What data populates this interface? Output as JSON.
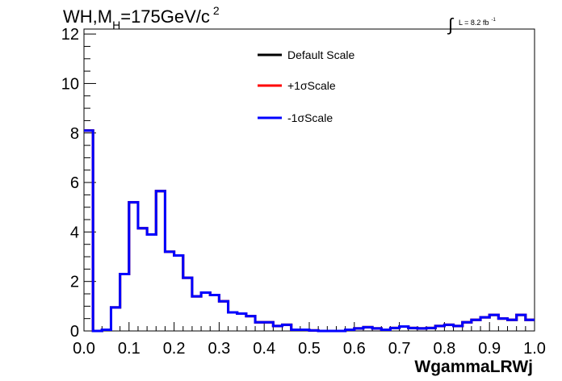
{
  "chart_data": {
    "type": "line",
    "title_main": "WH,M",
    "title_sub": "H",
    "title_rest": "=175GeV/c",
    "title_sup": "2",
    "lumi_text": "L = 8.2 fb",
    "lumi_sup": "-1",
    "xlabel": "WgammaLRWj",
    "xlim": [
      0,
      1.0
    ],
    "ylim": [
      0,
      12.2
    ],
    "x_ticks": [
      "0.0",
      "0.1",
      "0.2",
      "0.3",
      "0.4",
      "0.5",
      "0.6",
      "0.7",
      "0.8",
      "0.9",
      "1.0"
    ],
    "y_ticks": [
      "0",
      "2",
      "4",
      "6",
      "8",
      "10",
      "12"
    ],
    "bin_edges": [
      0,
      0.02,
      0.04,
      0.06,
      0.08,
      0.1,
      0.12,
      0.14,
      0.16,
      0.18,
      0.2,
      0.22,
      0.24,
      0.26,
      0.28,
      0.3,
      0.32,
      0.34,
      0.36,
      0.38,
      0.4,
      0.42,
      0.44,
      0.46,
      0.48,
      0.5,
      0.52,
      0.54,
      0.56,
      0.58,
      0.6,
      0.62,
      0.64,
      0.66,
      0.68,
      0.7,
      0.72,
      0.74,
      0.76,
      0.78,
      0.8,
      0.82,
      0.84,
      0.86,
      0.88,
      0.9,
      0.92,
      0.94,
      0.96,
      0.98,
      1.0
    ],
    "series": [
      {
        "name": "Default Scale",
        "color": "#000000",
        "values": [
          8.1,
          0.0,
          0.05,
          0.95,
          2.3,
          5.2,
          4.15,
          3.9,
          5.65,
          3.2,
          3.05,
          2.15,
          1.4,
          1.55,
          1.45,
          1.2,
          0.75,
          0.7,
          0.6,
          0.35,
          0.35,
          0.2,
          0.25,
          0.05,
          0.05,
          0.02,
          0.0,
          0.0,
          0.0,
          0.05,
          0.1,
          0.15,
          0.1,
          0.05,
          0.12,
          0.18,
          0.12,
          0.1,
          0.12,
          0.2,
          0.25,
          0.2,
          0.35,
          0.45,
          0.55,
          0.65,
          0.5,
          0.45,
          0.65,
          0.45
        ]
      },
      {
        "name": "+1σScale",
        "color": "#ff0000",
        "values": [
          8.1,
          0.0,
          0.05,
          0.95,
          2.3,
          5.2,
          4.15,
          3.9,
          5.65,
          3.2,
          3.05,
          2.15,
          1.4,
          1.55,
          1.45,
          1.2,
          0.75,
          0.7,
          0.6,
          0.35,
          0.35,
          0.2,
          0.25,
          0.05,
          0.05,
          0.02,
          0.0,
          0.0,
          0.0,
          0.05,
          0.1,
          0.15,
          0.1,
          0.05,
          0.12,
          0.18,
          0.12,
          0.1,
          0.12,
          0.2,
          0.25,
          0.2,
          0.35,
          0.45,
          0.55,
          0.65,
          0.5,
          0.45,
          0.65,
          0.45
        ]
      },
      {
        "name": "-1σScale",
        "color": "#0000ff",
        "values": [
          8.1,
          0.0,
          0.05,
          0.95,
          2.3,
          5.2,
          4.15,
          3.9,
          5.65,
          3.2,
          3.05,
          2.15,
          1.4,
          1.55,
          1.45,
          1.2,
          0.75,
          0.7,
          0.6,
          0.35,
          0.35,
          0.2,
          0.25,
          0.05,
          0.05,
          0.02,
          0.0,
          0.0,
          0.0,
          0.05,
          0.1,
          0.15,
          0.1,
          0.05,
          0.12,
          0.18,
          0.12,
          0.1,
          0.12,
          0.2,
          0.25,
          0.2,
          0.35,
          0.45,
          0.55,
          0.65,
          0.5,
          0.45,
          0.65,
          0.45
        ]
      }
    ],
    "legend_position": "top-center",
    "grid": false
  }
}
